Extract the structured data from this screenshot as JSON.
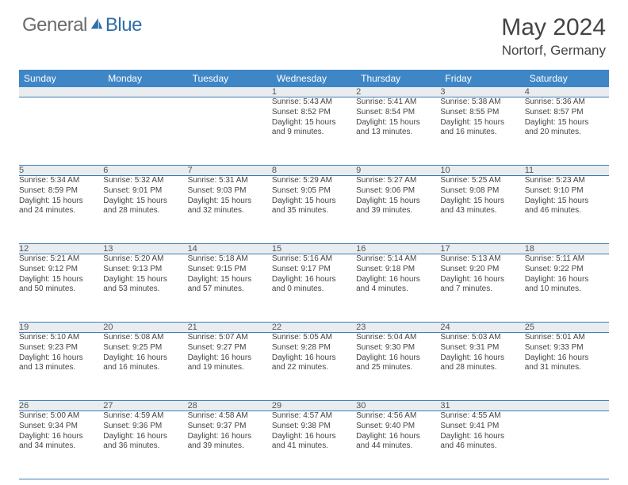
{
  "logo": {
    "general": "General",
    "blue": "Blue"
  },
  "title": "May 2024",
  "location": "Nortorf, Germany",
  "header_bg": "#3f86c6",
  "daynum_bg": "#e9edf0",
  "border_color": "#3f7db3",
  "days": [
    "Sunday",
    "Monday",
    "Tuesday",
    "Wednesday",
    "Thursday",
    "Friday",
    "Saturday"
  ],
  "weeks": [
    [
      null,
      null,
      null,
      {
        "n": "1",
        "sr": "Sunrise: 5:43 AM",
        "ss": "Sunset: 8:52 PM",
        "d1": "Daylight: 15 hours",
        "d2": "and 9 minutes."
      },
      {
        "n": "2",
        "sr": "Sunrise: 5:41 AM",
        "ss": "Sunset: 8:54 PM",
        "d1": "Daylight: 15 hours",
        "d2": "and 13 minutes."
      },
      {
        "n": "3",
        "sr": "Sunrise: 5:38 AM",
        "ss": "Sunset: 8:55 PM",
        "d1": "Daylight: 15 hours",
        "d2": "and 16 minutes."
      },
      {
        "n": "4",
        "sr": "Sunrise: 5:36 AM",
        "ss": "Sunset: 8:57 PM",
        "d1": "Daylight: 15 hours",
        "d2": "and 20 minutes."
      }
    ],
    [
      {
        "n": "5",
        "sr": "Sunrise: 5:34 AM",
        "ss": "Sunset: 8:59 PM",
        "d1": "Daylight: 15 hours",
        "d2": "and 24 minutes."
      },
      {
        "n": "6",
        "sr": "Sunrise: 5:32 AM",
        "ss": "Sunset: 9:01 PM",
        "d1": "Daylight: 15 hours",
        "d2": "and 28 minutes."
      },
      {
        "n": "7",
        "sr": "Sunrise: 5:31 AM",
        "ss": "Sunset: 9:03 PM",
        "d1": "Daylight: 15 hours",
        "d2": "and 32 minutes."
      },
      {
        "n": "8",
        "sr": "Sunrise: 5:29 AM",
        "ss": "Sunset: 9:05 PM",
        "d1": "Daylight: 15 hours",
        "d2": "and 35 minutes."
      },
      {
        "n": "9",
        "sr": "Sunrise: 5:27 AM",
        "ss": "Sunset: 9:06 PM",
        "d1": "Daylight: 15 hours",
        "d2": "and 39 minutes."
      },
      {
        "n": "10",
        "sr": "Sunrise: 5:25 AM",
        "ss": "Sunset: 9:08 PM",
        "d1": "Daylight: 15 hours",
        "d2": "and 43 minutes."
      },
      {
        "n": "11",
        "sr": "Sunrise: 5:23 AM",
        "ss": "Sunset: 9:10 PM",
        "d1": "Daylight: 15 hours",
        "d2": "and 46 minutes."
      }
    ],
    [
      {
        "n": "12",
        "sr": "Sunrise: 5:21 AM",
        "ss": "Sunset: 9:12 PM",
        "d1": "Daylight: 15 hours",
        "d2": "and 50 minutes."
      },
      {
        "n": "13",
        "sr": "Sunrise: 5:20 AM",
        "ss": "Sunset: 9:13 PM",
        "d1": "Daylight: 15 hours",
        "d2": "and 53 minutes."
      },
      {
        "n": "14",
        "sr": "Sunrise: 5:18 AM",
        "ss": "Sunset: 9:15 PM",
        "d1": "Daylight: 15 hours",
        "d2": "and 57 minutes."
      },
      {
        "n": "15",
        "sr": "Sunrise: 5:16 AM",
        "ss": "Sunset: 9:17 PM",
        "d1": "Daylight: 16 hours",
        "d2": "and 0 minutes."
      },
      {
        "n": "16",
        "sr": "Sunrise: 5:14 AM",
        "ss": "Sunset: 9:18 PM",
        "d1": "Daylight: 16 hours",
        "d2": "and 4 minutes."
      },
      {
        "n": "17",
        "sr": "Sunrise: 5:13 AM",
        "ss": "Sunset: 9:20 PM",
        "d1": "Daylight: 16 hours",
        "d2": "and 7 minutes."
      },
      {
        "n": "18",
        "sr": "Sunrise: 5:11 AM",
        "ss": "Sunset: 9:22 PM",
        "d1": "Daylight: 16 hours",
        "d2": "and 10 minutes."
      }
    ],
    [
      {
        "n": "19",
        "sr": "Sunrise: 5:10 AM",
        "ss": "Sunset: 9:23 PM",
        "d1": "Daylight: 16 hours",
        "d2": "and 13 minutes."
      },
      {
        "n": "20",
        "sr": "Sunrise: 5:08 AM",
        "ss": "Sunset: 9:25 PM",
        "d1": "Daylight: 16 hours",
        "d2": "and 16 minutes."
      },
      {
        "n": "21",
        "sr": "Sunrise: 5:07 AM",
        "ss": "Sunset: 9:27 PM",
        "d1": "Daylight: 16 hours",
        "d2": "and 19 minutes."
      },
      {
        "n": "22",
        "sr": "Sunrise: 5:05 AM",
        "ss": "Sunset: 9:28 PM",
        "d1": "Daylight: 16 hours",
        "d2": "and 22 minutes."
      },
      {
        "n": "23",
        "sr": "Sunrise: 5:04 AM",
        "ss": "Sunset: 9:30 PM",
        "d1": "Daylight: 16 hours",
        "d2": "and 25 minutes."
      },
      {
        "n": "24",
        "sr": "Sunrise: 5:03 AM",
        "ss": "Sunset: 9:31 PM",
        "d1": "Daylight: 16 hours",
        "d2": "and 28 minutes."
      },
      {
        "n": "25",
        "sr": "Sunrise: 5:01 AM",
        "ss": "Sunset: 9:33 PM",
        "d1": "Daylight: 16 hours",
        "d2": "and 31 minutes."
      }
    ],
    [
      {
        "n": "26",
        "sr": "Sunrise: 5:00 AM",
        "ss": "Sunset: 9:34 PM",
        "d1": "Daylight: 16 hours",
        "d2": "and 34 minutes."
      },
      {
        "n": "27",
        "sr": "Sunrise: 4:59 AM",
        "ss": "Sunset: 9:36 PM",
        "d1": "Daylight: 16 hours",
        "d2": "and 36 minutes."
      },
      {
        "n": "28",
        "sr": "Sunrise: 4:58 AM",
        "ss": "Sunset: 9:37 PM",
        "d1": "Daylight: 16 hours",
        "d2": "and 39 minutes."
      },
      {
        "n": "29",
        "sr": "Sunrise: 4:57 AM",
        "ss": "Sunset: 9:38 PM",
        "d1": "Daylight: 16 hours",
        "d2": "and 41 minutes."
      },
      {
        "n": "30",
        "sr": "Sunrise: 4:56 AM",
        "ss": "Sunset: 9:40 PM",
        "d1": "Daylight: 16 hours",
        "d2": "and 44 minutes."
      },
      {
        "n": "31",
        "sr": "Sunrise: 4:55 AM",
        "ss": "Sunset: 9:41 PM",
        "d1": "Daylight: 16 hours",
        "d2": "and 46 minutes."
      },
      null
    ]
  ]
}
